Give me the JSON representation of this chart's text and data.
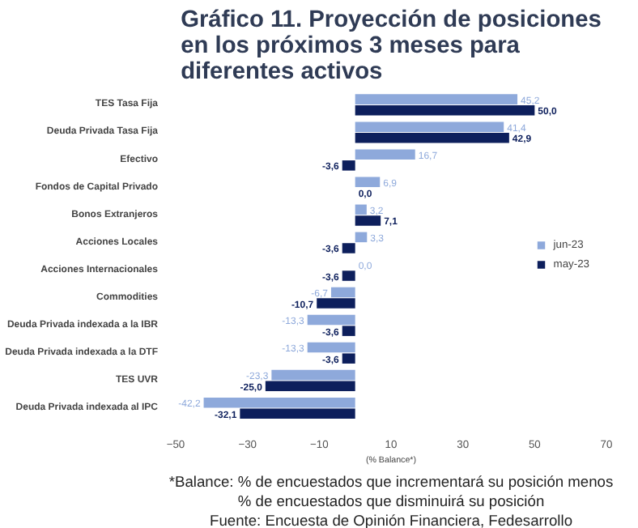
{
  "chart_data": {
    "type": "bar",
    "orientation": "horizontal",
    "title": "Gráfico 11. Proyección de posiciones en los próximos 3 meses para diferentes activos",
    "xlabel": "(% Balance*)",
    "categories": [
      "TES Tasa Fija",
      "Deuda Privada Tasa Fija",
      "Efectivo",
      "Fondos de Capital Privado",
      "Bonos Extranjeros",
      "Acciones Locales",
      "Acciones Internacionales",
      "Commodities",
      "Deuda Privada indexada a la IBR",
      "Deuda Privada indexada a la DTF",
      "TES UVR",
      "Deuda Privada indexada al IPC"
    ],
    "series": [
      {
        "name": "jun-23",
        "color": "#8ea9db",
        "values": [
          45.2,
          41.4,
          16.7,
          6.9,
          3.2,
          3.3,
          0.0,
          -6.7,
          -13.3,
          -13.3,
          -23.3,
          -42.2
        ],
        "value_labels": [
          "45,2",
          "41,4",
          "16,7",
          "6,9",
          "3,2",
          "3,3",
          "0,0",
          "-6,7",
          "-13,3",
          "-13,3",
          "-23,3",
          "-42,2"
        ]
      },
      {
        "name": "may-23",
        "color": "#0d1f5c",
        "values": [
          50.0,
          42.9,
          -3.6,
          0.0,
          7.1,
          -3.6,
          -3.6,
          -10.7,
          -3.6,
          -3.6,
          -25.0,
          -32.1
        ],
        "value_labels": [
          "50,0",
          "42,9",
          "-3,6",
          "0,0",
          "7,1",
          "-3,6",
          "-3,6",
          "-10,7",
          "-3,6",
          "-3,6",
          "-25,0",
          "-32,1"
        ]
      }
    ],
    "xlim": [
      -50,
      70
    ],
    "xticks": [
      -50,
      -30,
      -10,
      10,
      30,
      50,
      70
    ],
    "grid": false,
    "legend": "right",
    "annotations": [
      "*Balance: % de encuestados que incrementará su posición menos % de encuestados que disminuirá su posición",
      "Fuente: Encuesta de Opinión Financiera, Fedesarrollo"
    ]
  }
}
